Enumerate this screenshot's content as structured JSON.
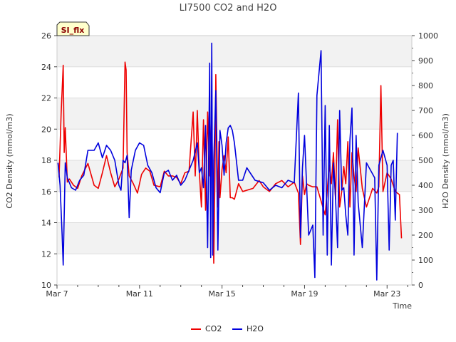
{
  "chart_data": {
    "type": "line",
    "title": "LI7500 CO2 and H2O",
    "xlabel": "Time",
    "ylabel_left": "CO2 Density (mmol/m3)",
    "ylabel_right": "H2O Density (mmol/m3)",
    "badge": "SI_flx",
    "x_range_days": [
      0,
      17.2
    ],
    "ylim_left": [
      10,
      26
    ],
    "ylim_right": [
      0,
      1000
    ],
    "x_ticks": [
      {
        "day": 0,
        "label": "Mar 7"
      },
      {
        "day": 4,
        "label": "Mar 11"
      },
      {
        "day": 8,
        "label": "Mar 15"
      },
      {
        "day": 12,
        "label": "Mar 19"
      },
      {
        "day": 16,
        "label": "Mar 23"
      }
    ],
    "y_ticks_left": [
      "10",
      "12",
      "14",
      "16",
      "18",
      "20",
      "22",
      "24",
      "26"
    ],
    "y_ticks_right": [
      "0",
      "100",
      "200",
      "300",
      "400",
      "500",
      "600",
      "700",
      "800",
      "900",
      "1000"
    ],
    "legend": [
      {
        "name": "CO2",
        "color": "#ee0000"
      },
      {
        "name": "H2O",
        "color": "#0000dd"
      }
    ],
    "series": [
      {
        "name": "CO2",
        "axis": "left",
        "color": "#ee0000",
        "x": [
          0.1,
          0.2,
          0.3,
          0.35,
          0.4,
          0.5,
          0.6,
          0.8,
          1.0,
          1.2,
          1.5,
          1.8,
          2.0,
          2.2,
          2.4,
          2.6,
          2.8,
          3.0,
          3.2,
          3.3,
          3.35,
          3.4,
          3.5,
          3.7,
          3.9,
          4.1,
          4.3,
          4.5,
          4.7,
          5.0,
          5.2,
          5.4,
          5.6,
          5.8,
          6.0,
          6.2,
          6.4,
          6.6,
          6.7,
          6.75,
          6.8,
          6.9,
          7.0,
          7.1,
          7.2,
          7.3,
          7.4,
          7.5,
          7.6,
          7.65,
          7.7,
          7.8,
          7.85,
          7.9,
          8.0,
          8.1,
          8.2,
          8.3,
          8.4,
          8.5,
          8.6,
          8.8,
          9.0,
          9.5,
          9.8,
          10.0,
          10.3,
          10.6,
          10.9,
          11.2,
          11.5,
          11.7,
          11.8,
          11.9,
          12.0,
          12.1,
          12.2,
          12.4,
          12.6,
          13.0,
          13.2,
          13.3,
          13.4,
          13.5,
          13.6,
          13.7,
          13.8,
          13.9,
          14.0,
          14.1,
          14.2,
          14.3,
          14.4,
          14.5,
          14.6,
          14.8,
          15.0,
          15.3,
          15.5,
          15.6,
          15.7,
          15.8,
          16.0,
          16.2,
          16.4,
          16.6,
          16.7
        ],
        "y": [
          16.9,
          21.0,
          24.1,
          18.5,
          20.1,
          16.6,
          16.8,
          16.4,
          16.2,
          17.0,
          17.8,
          16.4,
          16.2,
          17.2,
          18.3,
          17.2,
          16.3,
          16.8,
          17.5,
          24.3,
          23.8,
          18.5,
          17.0,
          16.5,
          15.9,
          17.1,
          17.5,
          17.3,
          16.4,
          16.3,
          17.3,
          17.0,
          17.0,
          16.9,
          16.5,
          17.2,
          17.3,
          21.1,
          17.0,
          18.7,
          21.2,
          17.2,
          15.0,
          20.6,
          14.8,
          21.1,
          17.0,
          20.9,
          11.4,
          16.5,
          23.5,
          15.0,
          19.2,
          15.6,
          17.4,
          18.3,
          17.2,
          19.5,
          15.6,
          15.6,
          15.5,
          16.5,
          16.0,
          16.2,
          16.7,
          16.3,
          16.0,
          16.5,
          16.7,
          16.3,
          16.6,
          15.9,
          12.6,
          17.0,
          15.8,
          16.5,
          16.4,
          16.3,
          16.3,
          14.5,
          17.7,
          16.5,
          18.5,
          15.5,
          20.6,
          15.0,
          16.0,
          17.6,
          16.5,
          19.2,
          15.0,
          18.5,
          17.0,
          16.0,
          18.8,
          16.2,
          15.0,
          16.2,
          15.9,
          16.3,
          22.8,
          16.0,
          17.2,
          16.8,
          16.0,
          15.8,
          13.0
        ]
      },
      {
        "name": "H2O",
        "axis": "right",
        "color": "#0000dd",
        "x": [
          0.05,
          0.15,
          0.25,
          0.3,
          0.4,
          0.5,
          0.7,
          0.9,
          1.1,
          1.3,
          1.5,
          1.8,
          2.0,
          2.2,
          2.4,
          2.6,
          2.8,
          3.0,
          3.1,
          3.2,
          3.3,
          3.4,
          3.5,
          3.6,
          3.8,
          4.0,
          4.2,
          4.4,
          4.6,
          4.8,
          5.0,
          5.2,
          5.4,
          5.6,
          5.8,
          6.0,
          6.2,
          6.4,
          6.6,
          6.8,
          6.9,
          7.0,
          7.1,
          7.2,
          7.3,
          7.4,
          7.45,
          7.5,
          7.55,
          7.6,
          7.7,
          7.8,
          7.9,
          8.0,
          8.1,
          8.2,
          8.3,
          8.4,
          8.5,
          8.6,
          8.8,
          9.0,
          9.2,
          9.6,
          10.0,
          10.3,
          10.6,
          10.9,
          11.2,
          11.5,
          11.7,
          11.8,
          11.9,
          12.0,
          12.2,
          12.4,
          12.5,
          12.6,
          12.8,
          12.9,
          13.0,
          13.1,
          13.2,
          13.3,
          13.4,
          13.5,
          13.6,
          13.7,
          13.8,
          13.9,
          14.0,
          14.1,
          14.2,
          14.3,
          14.4,
          14.5,
          14.6,
          14.8,
          15.0,
          15.2,
          15.4,
          15.5,
          15.6,
          15.8,
          16.0,
          16.1,
          16.2,
          16.3,
          16.4,
          16.5
        ],
        "y": [
          490,
          400,
          200,
          80,
          490,
          430,
          390,
          380,
          420,
          440,
          540,
          540,
          570,
          510,
          560,
          540,
          500,
          400,
          380,
          500,
          490,
          520,
          270,
          460,
          540,
          570,
          560,
          480,
          450,
          390,
          370,
          450,
          460,
          420,
          440,
          400,
          420,
          460,
          500,
          570,
          450,
          470,
          390,
          640,
          150,
          890,
          110,
          970,
          120,
          500,
          780,
          140,
          620,
          560,
          440,
          570,
          630,
          640,
          620,
          570,
          420,
          420,
          470,
          420,
          410,
          380,
          400,
          390,
          420,
          410,
          770,
          190,
          470,
          600,
          200,
          240,
          30,
          760,
          940,
          200,
          720,
          120,
          640,
          80,
          490,
          350,
          150,
          700,
          380,
          390,
          280,
          200,
          580,
          710,
          120,
          600,
          330,
          150,
          490,
          460,
          430,
          20,
          480,
          540,
          480,
          140,
          480,
          500,
          260,
          610
        ]
      }
    ]
  }
}
